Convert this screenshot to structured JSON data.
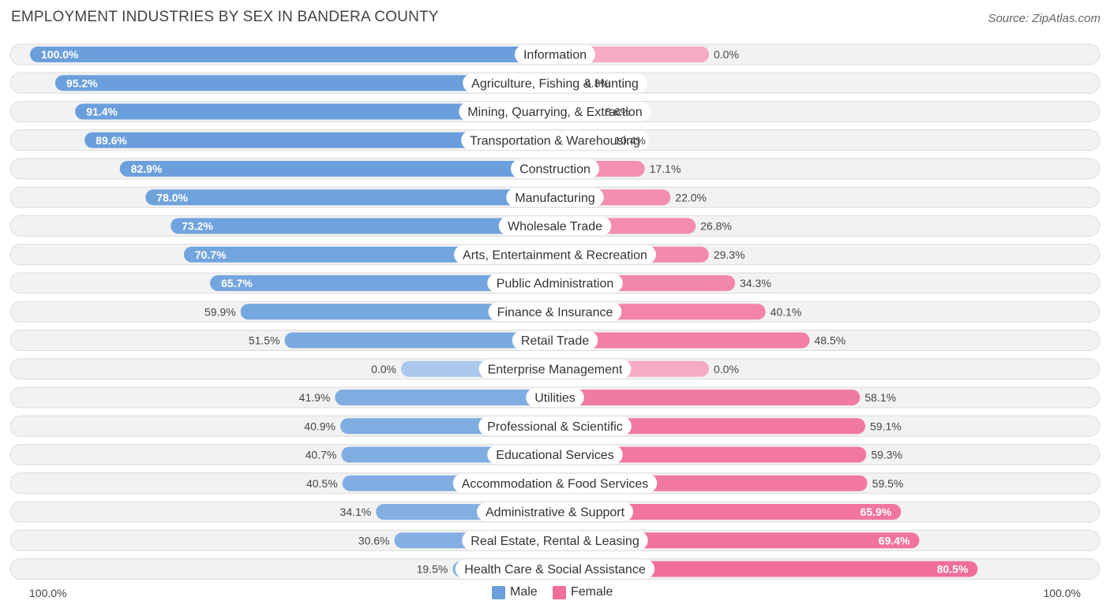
{
  "title": "EMPLOYMENT INDUSTRIES BY SEX IN BANDERA COUNTY",
  "source": "Source: ZipAtlas.com",
  "legend": {
    "male_label": "Male",
    "female_label": "Female"
  },
  "axis": {
    "left_label": "100.0%",
    "right_label": "100.0%"
  },
  "colors": {
    "male_strong": "#6a9fdc",
    "male_light": "#a9c8ec",
    "female_strong": "#f06e98",
    "female_light": "#f6aac3",
    "row_bg": "#f2f2f2",
    "row_border": "#dcdcdc"
  },
  "chart_data": {
    "type": "bar",
    "orientation": "horizontal-diverging",
    "title": "EMPLOYMENT INDUSTRIES BY SEX IN BANDERA COUNTY",
    "xlim": [
      -100,
      100
    ],
    "series_names": [
      "Male",
      "Female"
    ],
    "categories": [
      "Information",
      "Agriculture, Fishing & Hunting",
      "Mining, Quarrying, & Extraction",
      "Transportation & Warehousing",
      "Construction",
      "Manufacturing",
      "Wholesale Trade",
      "Arts, Entertainment & Recreation",
      "Public Administration",
      "Finance & Insurance",
      "Retail Trade",
      "Enterprise Management",
      "Utilities",
      "Professional & Scientific",
      "Educational Services",
      "Accommodation & Food Services",
      "Administrative & Support",
      "Real Estate, Rental & Leasing",
      "Health Care & Social Assistance"
    ],
    "male": [
      100.0,
      95.2,
      91.4,
      89.6,
      82.9,
      78.0,
      73.2,
      70.7,
      65.7,
      59.9,
      51.5,
      0.0,
      41.9,
      40.9,
      40.7,
      40.5,
      34.1,
      30.6,
      19.5
    ],
    "female": [
      0.0,
      4.8,
      8.6,
      10.4,
      17.1,
      22.0,
      26.8,
      29.3,
      34.3,
      40.1,
      48.5,
      0.0,
      58.1,
      59.1,
      59.3,
      59.5,
      65.9,
      69.4,
      80.5
    ],
    "male_labels": [
      "100.0%",
      "95.2%",
      "91.4%",
      "89.6%",
      "82.9%",
      "78.0%",
      "73.2%",
      "70.7%",
      "65.7%",
      "59.9%",
      "51.5%",
      "0.0%",
      "41.9%",
      "40.9%",
      "40.7%",
      "40.5%",
      "34.1%",
      "30.6%",
      "19.5%"
    ],
    "female_labels": [
      "0.0%",
      "4.8%",
      "8.6%",
      "10.4%",
      "17.1%",
      "22.0%",
      "26.8%",
      "29.3%",
      "34.3%",
      "40.1%",
      "48.5%",
      "0.0%",
      "58.1%",
      "59.1%",
      "59.3%",
      "59.5%",
      "65.9%",
      "69.4%",
      "80.5%"
    ]
  }
}
